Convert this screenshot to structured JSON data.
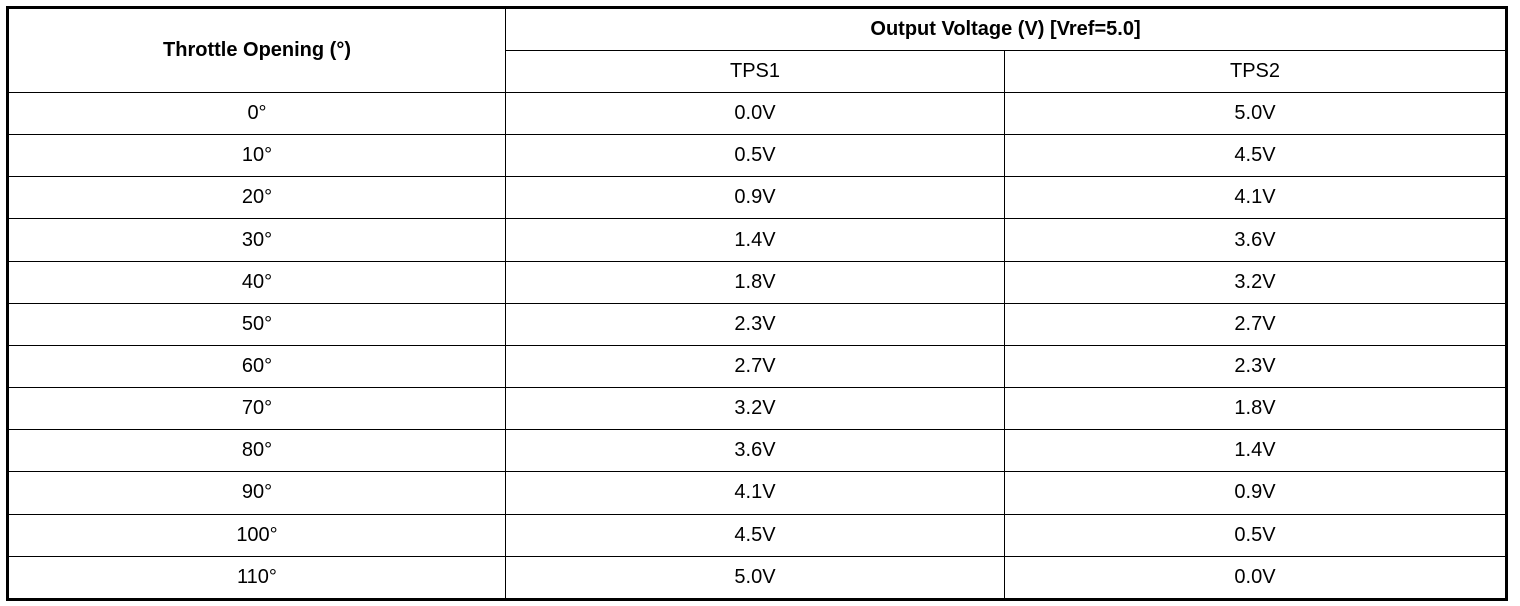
{
  "table": {
    "header": {
      "throttle": "Throttle Opening (°)",
      "output": "Output Voltage (V) [Vref=5.0]",
      "tps1": "TPS1",
      "tps2": "TPS2"
    },
    "rows": [
      [
        "0°",
        "0.0V",
        "5.0V"
      ],
      [
        "10°",
        "0.5V",
        "4.5V"
      ],
      [
        "20°",
        "0.9V",
        "4.1V"
      ],
      [
        "30°",
        "1.4V",
        "3.6V"
      ],
      [
        "40°",
        "1.8V",
        "3.2V"
      ],
      [
        "50°",
        "2.3V",
        "2.7V"
      ],
      [
        "60°",
        "2.7V",
        "2.3V"
      ],
      [
        "70°",
        "3.2V",
        "1.8V"
      ],
      [
        "80°",
        "3.6V",
        "1.4V"
      ],
      [
        "90°",
        "4.1V",
        "0.9V"
      ],
      [
        "100°",
        "4.5V",
        "0.5V"
      ],
      [
        "110°",
        "5.0V",
        "0.0V"
      ]
    ]
  }
}
